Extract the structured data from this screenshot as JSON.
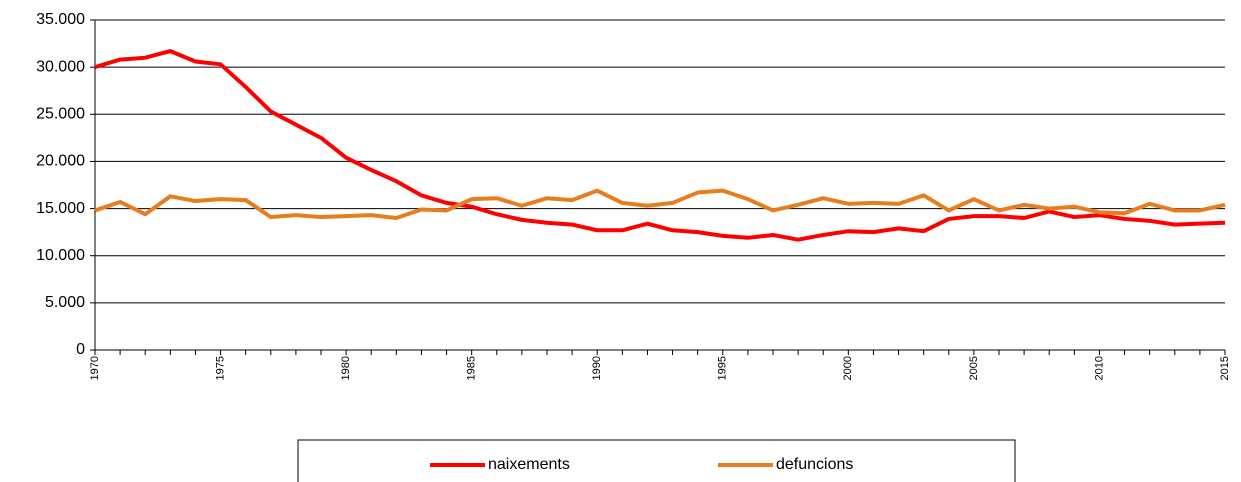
{
  "chart_data": {
    "type": "line",
    "x": [
      1970,
      1971,
      1972,
      1973,
      1974,
      1975,
      1976,
      1977,
      1978,
      1979,
      1980,
      1981,
      1982,
      1983,
      1984,
      1985,
      1986,
      1987,
      1988,
      1989,
      1990,
      1991,
      1992,
      1993,
      1994,
      1995,
      1996,
      1997,
      1998,
      1999,
      2000,
      2001,
      2002,
      2003,
      2004,
      2005,
      2006,
      2007,
      2008,
      2009,
      2010,
      2011,
      2012,
      2013,
      2014,
      2015
    ],
    "series": [
      {
        "name": "naixements",
        "color": "#ff0000",
        "values": [
          30000,
          30800,
          31000,
          31700,
          30600,
          30300,
          27900,
          25300,
          23900,
          22500,
          20400,
          19100,
          17900,
          16400,
          15600,
          15200,
          14400,
          13800,
          13500,
          13300,
          12700,
          12700,
          13400,
          12700,
          12500,
          12100,
          11900,
          12200,
          11700,
          12200,
          12600,
          12500,
          12900,
          12600,
          13900,
          14200,
          14200,
          14000,
          14700,
          14100,
          14300,
          13900,
          13700,
          13300,
          13400,
          13500
        ]
      },
      {
        "name": "defuncions",
        "color": "#e87d1e",
        "values": [
          14800,
          15700,
          14400,
          16300,
          15800,
          16000,
          15900,
          14100,
          14300,
          14100,
          14200,
          14300,
          14000,
          14900,
          14800,
          16000,
          16100,
          15300,
          16100,
          15900,
          16900,
          15600,
          15300,
          15600,
          16700,
          16900,
          16000,
          14800,
          15400,
          16100,
          15500,
          15600,
          15500,
          16400,
          14800,
          16000,
          14800,
          15400,
          15000,
          15200,
          14600,
          14500,
          15500,
          14800,
          14800,
          15400
        ]
      }
    ],
    "xlim": [
      1970,
      2015
    ],
    "xticks": [
      1970,
      1975,
      1980,
      1985,
      1990,
      1995,
      2000,
      2005,
      2010,
      2015
    ],
    "ylim": [
      0,
      35000
    ],
    "yticks": [
      0,
      {
        "value": 5000,
        "label": "5.000"
      },
      {
        "value": 10000,
        "label": "10.000"
      },
      {
        "value": 15000,
        "label": "15.000"
      },
      {
        "value": 20000,
        "label": "20.000"
      },
      {
        "value": 25000,
        "label": "25.000"
      },
      {
        "value": 30000,
        "label": "30.000"
      },
      {
        "value": 35000,
        "label": "35.000"
      }
    ],
    "grid": true,
    "legend": "bottom"
  }
}
